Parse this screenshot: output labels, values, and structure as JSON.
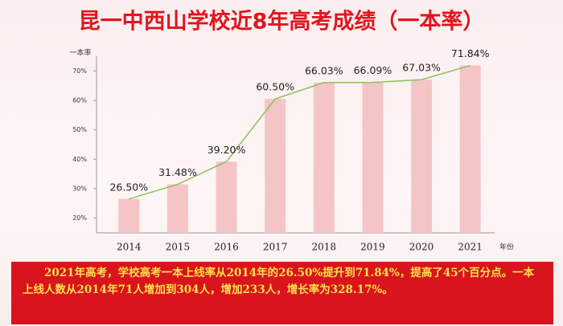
{
  "chart_data": {
    "type": "bar",
    "title": "昆一中西山学校近8年高考成绩（一本率）",
    "y_label": "一本率",
    "x_label": "年份",
    "categories": [
      "2014",
      "2015",
      "2016",
      "2017",
      "2018",
      "2019",
      "2020",
      "2021"
    ],
    "values": [
      26.5,
      31.48,
      39.2,
      60.5,
      66.03,
      66.09,
      67.03,
      71.84
    ],
    "value_labels": [
      "26.50%",
      "31.48%",
      "39.20%",
      "60.50%",
      "66.03%",
      "66.09%",
      "67.03%",
      "71.84%"
    ],
    "color": "#f5c4c7",
    "trend_line": true,
    "trend_color": "#8cc15a",
    "ylim": [
      15,
      75
    ],
    "yticks": [
      {
        "value": 20,
        "label": "20%"
      },
      {
        "value": 30,
        "label": "30%"
      },
      {
        "value": 40,
        "label": "40%"
      },
      {
        "value": 50,
        "label": "50%"
      },
      {
        "value": 60,
        "label": "60%"
      },
      {
        "value": 70,
        "label": "70%"
      }
    ],
    "annotation": "2021年高考，学校高考一本上线率从2014年的26.50%提升到71.84%，提高了45个百分点。一本上线人数从2014年71人增加到304人，增加233人，增长率为328.17%。"
  }
}
